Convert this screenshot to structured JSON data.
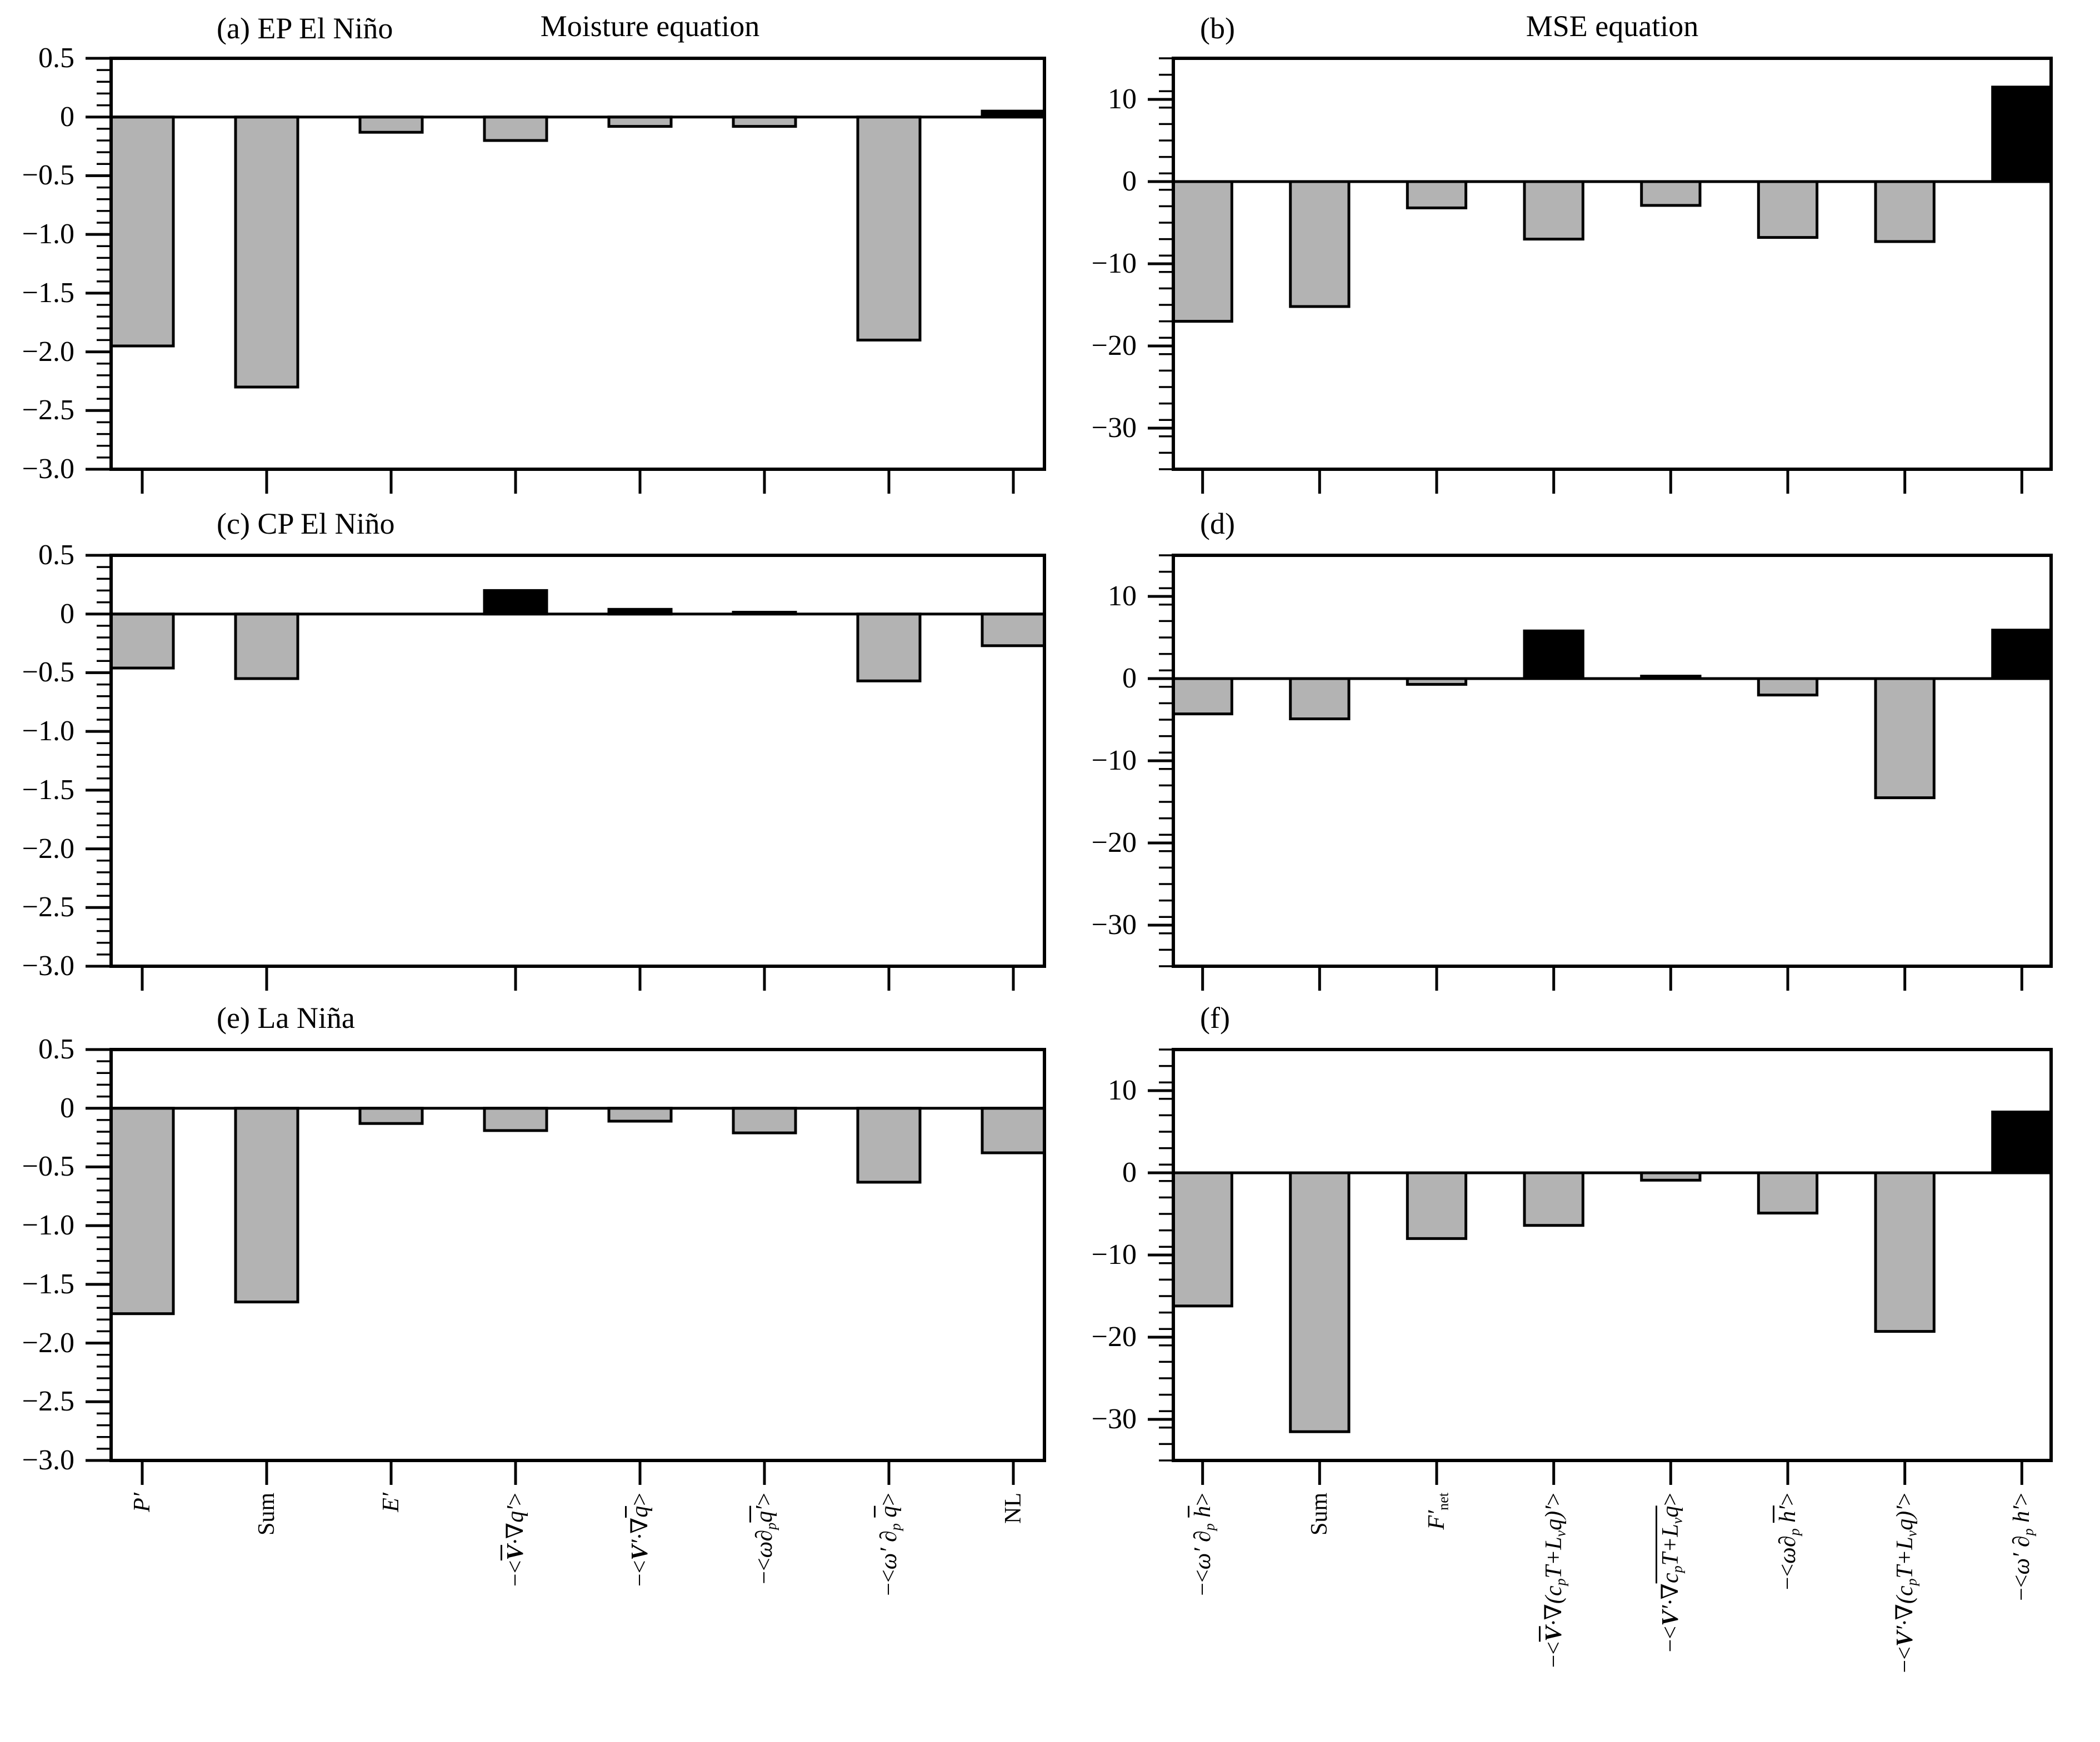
{
  "figure": {
    "col_titles": [
      "Moisture equation",
      "MSE equation"
    ],
    "bar_colors": {
      "gray": "#b3b3b3",
      "black": "#000000"
    },
    "background": "#ffffff"
  },
  "axes": [
    {
      "side": "left-column",
      "ylim": [
        -3.0,
        0.5
      ],
      "minor_step": 0.1,
      "majors": [
        {
          "v": 0.5,
          "label": "0.5"
        },
        {
          "v": 0,
          "label": "0"
        },
        {
          "v": -0.5,
          "label": "−0.5"
        },
        {
          "v": -1.0,
          "label": "−1.0"
        },
        {
          "v": -1.5,
          "label": "−1.5"
        },
        {
          "v": -2.0,
          "label": "−2.0"
        },
        {
          "v": -2.5,
          "label": "−2.5"
        },
        {
          "v": -3.0,
          "label": "−3.0"
        }
      ]
    },
    {
      "side": "right-column",
      "ylim": [
        -35,
        15
      ],
      "minor_step": 2,
      "majors": [
        {
          "v": 10,
          "label": "10"
        },
        {
          "v": 0,
          "label": "0"
        },
        {
          "v": -10,
          "label": "−10"
        },
        {
          "v": -20,
          "label": "−20"
        },
        {
          "v": -30,
          "label": "−30"
        }
      ]
    }
  ],
  "categories": [
    [
      {
        "name": "P-prime",
        "runs": [
          {
            "parts": [
              {
                "t": "P′"
              }
            ]
          }
        ]
      },
      {
        "name": "Sum",
        "runs": [
          {
            "parts": [
              {
                "t": "Sum",
                "up": 1
              }
            ]
          }
        ]
      },
      {
        "name": "E-prime",
        "runs": [
          {
            "parts": [
              {
                "t": "E′"
              }
            ]
          }
        ]
      },
      {
        "name": "mean-horiz-adv-anom-q",
        "runs": [
          {
            "parts": [
              {
                "t": "−<",
                "up": 1
              }
            ]
          },
          {
            "ov": 1,
            "parts": [
              {
                "t": "V",
                "b": 1
              }
            ]
          },
          {
            "parts": [
              {
                "t": "·∇q′"
              }
            ]
          },
          {
            "parts": [
              {
                "t": ">",
                "up": 1
              }
            ]
          }
        ]
      },
      {
        "name": "anom-horiz-adv-mean-q",
        "runs": [
          {
            "parts": [
              {
                "t": "−<",
                "up": 1
              }
            ]
          },
          {
            "parts": [
              {
                "t": "V",
                "b": 1
              },
              {
                "t": "′·∇"
              }
            ]
          },
          {
            "ov": 1,
            "parts": [
              {
                "t": "q"
              }
            ]
          },
          {
            "parts": [
              {
                "t": ">",
                "up": 1
              }
            ]
          }
        ]
      },
      {
        "name": "mean-vert-adv-anom-q",
        "runs": [
          {
            "parts": [
              {
                "t": "−<",
                "up": 1
              }
            ]
          },
          {
            "parts": [
              {
                "t": "ω∂"
              },
              {
                "t": "p",
                "sub": 1
              }
            ]
          },
          {
            "ov": 1,
            "parts": [
              {
                "t": "q′"
              }
            ]
          },
          {
            "parts": [
              {
                "t": ">",
                "up": 1
              }
            ]
          }
        ]
      },
      {
        "name": "anom-vert-adv-mean-q",
        "runs": [
          {
            "parts": [
              {
                "t": "−<",
                "up": 1
              }
            ]
          },
          {
            "parts": [
              {
                "t": "ω′ ∂"
              },
              {
                "t": "p",
                "sub": 1
              },
              {
                "t": " "
              }
            ]
          },
          {
            "ov": 1,
            "parts": [
              {
                "t": "q"
              }
            ]
          },
          {
            "parts": [
              {
                "t": ">",
                "up": 1
              }
            ]
          }
        ]
      },
      {
        "name": "NL",
        "runs": [
          {
            "parts": [
              {
                "t": "NL",
                "up": 1
              }
            ]
          }
        ]
      }
    ],
    [
      {
        "name": "anom-omega-mean-h",
        "runs": [
          {
            "parts": [
              {
                "t": "−<",
                "up": 1
              }
            ]
          },
          {
            "parts": [
              {
                "t": "ω′ ∂"
              },
              {
                "t": "p",
                "sub": 1
              },
              {
                "t": " "
              }
            ]
          },
          {
            "ov": 1,
            "parts": [
              {
                "t": "h"
              }
            ]
          },
          {
            "parts": [
              {
                "t": ">",
                "up": 1
              }
            ]
          }
        ]
      },
      {
        "name": "Sum",
        "runs": [
          {
            "parts": [
              {
                "t": "Sum",
                "up": 1
              }
            ]
          }
        ]
      },
      {
        "name": "F-net",
        "runs": [
          {
            "parts": [
              {
                "t": "F′"
              },
              {
                "t": "net",
                "sub": 1,
                "up": 1
              }
            ]
          }
        ]
      },
      {
        "name": "mean-horiz-adv-anom-mse",
        "runs": [
          {
            "parts": [
              {
                "t": "−<",
                "up": 1
              }
            ]
          },
          {
            "ov": 1,
            "parts": [
              {
                "t": "V",
                "b": 1
              }
            ]
          },
          {
            "parts": [
              {
                "t": "·∇(c"
              },
              {
                "t": "p",
                "sub": 1
              },
              {
                "t": "T+L"
              },
              {
                "t": "v",
                "sub": 1
              },
              {
                "t": "q)′"
              }
            ]
          },
          {
            "parts": [
              {
                "t": ">",
                "up": 1
              }
            ]
          }
        ]
      },
      {
        "name": "anom-horiz-adv-mean-mse",
        "runs": [
          {
            "parts": [
              {
                "t": "−<",
                "up": 1
              }
            ]
          },
          {
            "parts": [
              {
                "t": "V",
                "b": 1
              },
              {
                "t": "′·∇"
              }
            ]
          },
          {
            "ov": 1,
            "parts": [
              {
                "t": "c"
              },
              {
                "t": "p",
                "sub": 1
              },
              {
                "t": "T+L"
              },
              {
                "t": "v",
                "sub": 1
              },
              {
                "t": "q"
              }
            ]
          },
          {
            "parts": [
              {
                "t": ">",
                "up": 1
              }
            ]
          }
        ]
      },
      {
        "name": "mean-omega-anom-h",
        "runs": [
          {
            "parts": [
              {
                "t": "−<",
                "up": 1
              }
            ]
          },
          {
            "parts": [
              {
                "t": "ω∂"
              },
              {
                "t": "p",
                "sub": 1
              },
              {
                "t": " "
              }
            ]
          },
          {
            "ov": 1,
            "parts": [
              {
                "t": "h′"
              }
            ]
          },
          {
            "parts": [
              {
                "t": ">",
                "up": 1
              }
            ]
          }
        ]
      },
      {
        "name": "nonlinear-horiz",
        "runs": [
          {
            "parts": [
              {
                "t": "−<",
                "up": 1
              }
            ]
          },
          {
            "parts": [
              {
                "t": "V",
                "b": 1
              },
              {
                "t": "′·∇(c"
              },
              {
                "t": "p",
                "sub": 1
              },
              {
                "t": "T+L"
              },
              {
                "t": "v",
                "sub": 1
              },
              {
                "t": "q)′"
              }
            ]
          },
          {
            "parts": [
              {
                "t": ">",
                "up": 1
              }
            ]
          }
        ]
      },
      {
        "name": "nonlinear-vert",
        "runs": [
          {
            "parts": [
              {
                "t": "−<",
                "up": 1
              }
            ]
          },
          {
            "parts": [
              {
                "t": "ω′ ∂"
              },
              {
                "t": "p",
                "sub": 1
              },
              {
                "t": " h′"
              }
            ]
          },
          {
            "parts": [
              {
                "t": ">",
                "up": 1
              }
            ]
          }
        ]
      }
    ]
  ],
  "chart_data": [
    {
      "id": "a",
      "type": "bar",
      "title": "(a) EP El Niño",
      "col": 0,
      "row": 0,
      "categories": [
        "P′",
        "Sum",
        "E′",
        "−<V̄·∇q′>",
        "−<V′·∇q̄>",
        "−<ω∂p q̄′>",
        "−<ω′∂p q̄>",
        "NL"
      ],
      "values": [
        -1.95,
        -2.3,
        -0.13,
        -0.2,
        -0.08,
        -0.08,
        -1.9,
        0.05
      ],
      "colors": [
        "gray",
        "gray",
        "gray",
        "gray",
        "gray",
        "gray",
        "gray",
        "black"
      ],
      "ylim": [
        -3.0,
        0.5
      ]
    },
    {
      "id": "b",
      "type": "bar",
      "title": "(b)",
      "col": 1,
      "row": 0,
      "categories": [
        "−<ω′∂p h̄>",
        "Sum",
        "F′net",
        "−<V̄·∇(cpT+Lvq)′>",
        "−<V′·∇(cpT+Lvq)>",
        "−<ω∂p h̄′>",
        "−<V′·∇(cpT+Lvq)′>",
        "−<ω′∂p h′>"
      ],
      "values": [
        -17,
        -15.2,
        -3.2,
        -7.0,
        -2.9,
        -6.8,
        -7.3,
        11.5
      ],
      "colors": [
        "gray",
        "gray",
        "gray",
        "gray",
        "gray",
        "gray",
        "gray",
        "black"
      ],
      "ylim": [
        -35,
        15
      ]
    },
    {
      "id": "c",
      "type": "bar",
      "title": "(c) CP El Niño",
      "col": 0,
      "row": 1,
      "categories": [
        "P′",
        "Sum",
        "E′",
        "−<V̄·∇q′>",
        "−<V′·∇q̄>",
        "−<ω∂p q̄′>",
        "−<ω′∂p q̄>",
        "NL"
      ],
      "values": [
        -0.46,
        -0.55,
        0,
        0.2,
        0.04,
        0.015,
        -0.57,
        -0.27
      ],
      "colors": [
        "gray",
        "gray",
        "gray",
        "black",
        "black",
        "black",
        "gray",
        "gray"
      ],
      "ylim": [
        -3.0,
        0.5
      ]
    },
    {
      "id": "d",
      "type": "bar",
      "title": "(d)",
      "col": 1,
      "row": 1,
      "categories": [
        "−<ω′∂p h̄>",
        "Sum",
        "F′net",
        "−<V̄·∇(cpT+Lvq)′>",
        "−<V′·∇(cpT+Lvq)>",
        "−<ω∂p h̄′>",
        "−<V′·∇(cpT+Lvq)′>",
        "−<ω′∂p h′>"
      ],
      "values": [
        -4.3,
        -4.9,
        -0.7,
        5.8,
        0.3,
        -2.0,
        -14.5,
        5.9
      ],
      "colors": [
        "gray",
        "gray",
        "gray",
        "black",
        "black",
        "gray",
        "gray",
        "black"
      ],
      "ylim": [
        -35,
        15
      ]
    },
    {
      "id": "e",
      "type": "bar",
      "title": "(e) La Niña",
      "col": 0,
      "row": 2,
      "categories": [
        "P′",
        "Sum",
        "E′",
        "−<V̄·∇q′>",
        "−<V′·∇q̄>",
        "−<ω∂p q̄′>",
        "−<ω′∂p q̄>",
        "NL"
      ],
      "values": [
        -1.75,
        -1.65,
        -0.13,
        -0.19,
        -0.11,
        -0.21,
        -0.63,
        -0.38
      ],
      "colors": [
        "gray",
        "gray",
        "gray",
        "gray",
        "gray",
        "gray",
        "gray",
        "gray"
      ],
      "ylim": [
        -3.0,
        0.5
      ]
    },
    {
      "id": "f",
      "type": "bar",
      "title": "(f)",
      "col": 1,
      "row": 2,
      "categories": [
        "−<ω′∂p h̄>",
        "Sum",
        "F′net",
        "−<V̄·∇(cpT+Lvq)′>",
        "−<V′·∇(cpT+Lvq)>",
        "−<ω∂p h̄′>",
        "−<V′·∇(cpT+Lvq)′>",
        "−<ω′∂p h′>"
      ],
      "values": [
        -16.2,
        -31.5,
        -8.0,
        -6.4,
        -0.9,
        -4.9,
        -19.3,
        7.4
      ],
      "colors": [
        "gray",
        "gray",
        "gray",
        "gray",
        "gray",
        "gray",
        "gray",
        "black"
      ],
      "ylim": [
        -35,
        15
      ]
    }
  ]
}
